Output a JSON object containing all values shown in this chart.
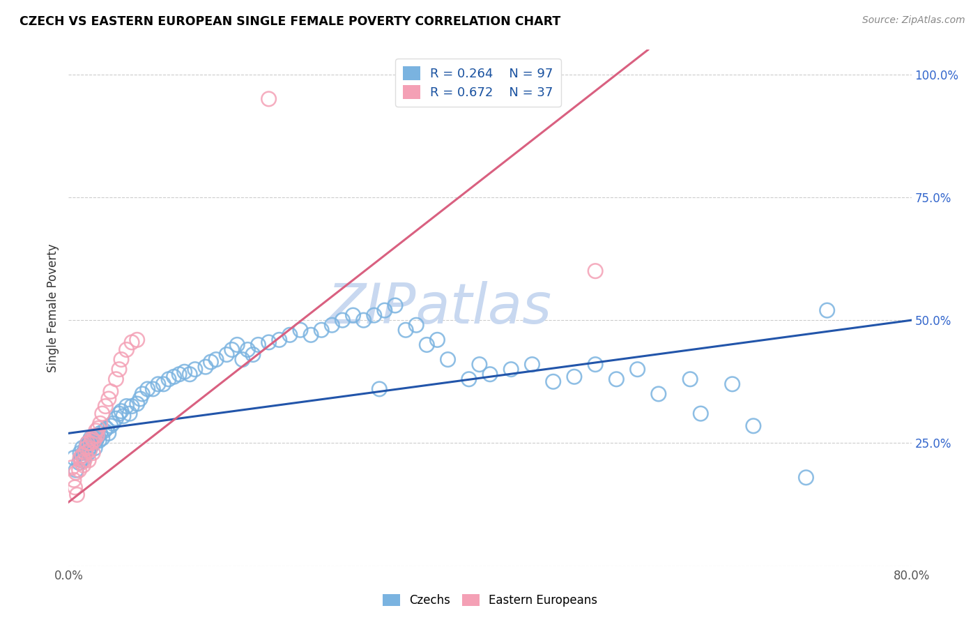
{
  "title": "CZECH VS EASTERN EUROPEAN SINGLE FEMALE POVERTY CORRELATION CHART",
  "source": "Source: ZipAtlas.com",
  "ylabel": "Single Female Poverty",
  "czech_R": "0.264",
  "czech_N": "97",
  "eastern_R": "0.672",
  "eastern_N": "37",
  "czech_color": "#7ab3e0",
  "eastern_color": "#f4a0b5",
  "czech_line_color": "#2255aa",
  "eastern_line_color": "#d96080",
  "watermark_text": "ZIPatlas",
  "watermark_color": "#c8d8f0",
  "xlim": [
    0.0,
    0.8
  ],
  "ylim": [
    0.0,
    1.05
  ],
  "czech_line": [
    0.0,
    0.27,
    0.8,
    0.5
  ],
  "eastern_line": [
    0.0,
    0.13,
    0.55,
    1.05
  ],
  "czech_x": [
    0.005,
    0.007,
    0.01,
    0.011,
    0.012,
    0.013,
    0.013,
    0.014,
    0.015,
    0.016,
    0.017,
    0.018,
    0.019,
    0.02,
    0.02,
    0.021,
    0.022,
    0.023,
    0.024,
    0.025,
    0.026,
    0.027,
    0.028,
    0.029,
    0.03,
    0.032,
    0.034,
    0.036,
    0.038,
    0.04,
    0.042,
    0.045,
    0.048,
    0.05,
    0.052,
    0.055,
    0.058,
    0.06,
    0.065,
    0.068,
    0.07,
    0.075,
    0.08,
    0.085,
    0.09,
    0.095,
    0.1,
    0.105,
    0.11,
    0.115,
    0.12,
    0.13,
    0.135,
    0.14,
    0.15,
    0.155,
    0.16,
    0.165,
    0.17,
    0.175,
    0.18,
    0.19,
    0.2,
    0.21,
    0.22,
    0.23,
    0.24,
    0.25,
    0.26,
    0.27,
    0.28,
    0.29,
    0.295,
    0.3,
    0.31,
    0.32,
    0.33,
    0.34,
    0.35,
    0.36,
    0.38,
    0.39,
    0.4,
    0.42,
    0.44,
    0.46,
    0.48,
    0.5,
    0.52,
    0.54,
    0.56,
    0.59,
    0.6,
    0.63,
    0.65,
    0.7,
    0.72
  ],
  "czech_y": [
    0.22,
    0.195,
    0.21,
    0.23,
    0.215,
    0.225,
    0.24,
    0.23,
    0.22,
    0.235,
    0.245,
    0.25,
    0.23,
    0.255,
    0.24,
    0.26,
    0.245,
    0.25,
    0.255,
    0.24,
    0.255,
    0.26,
    0.265,
    0.255,
    0.27,
    0.26,
    0.275,
    0.28,
    0.27,
    0.285,
    0.29,
    0.3,
    0.31,
    0.315,
    0.305,
    0.325,
    0.31,
    0.325,
    0.33,
    0.34,
    0.35,
    0.36,
    0.36,
    0.37,
    0.37,
    0.38,
    0.385,
    0.39,
    0.395,
    0.39,
    0.4,
    0.405,
    0.415,
    0.42,
    0.43,
    0.44,
    0.45,
    0.42,
    0.44,
    0.43,
    0.45,
    0.455,
    0.46,
    0.47,
    0.48,
    0.47,
    0.48,
    0.49,
    0.5,
    0.51,
    0.5,
    0.51,
    0.36,
    0.52,
    0.53,
    0.48,
    0.49,
    0.45,
    0.46,
    0.42,
    0.38,
    0.41,
    0.39,
    0.4,
    0.41,
    0.375,
    0.385,
    0.41,
    0.38,
    0.4,
    0.35,
    0.38,
    0.31,
    0.37,
    0.285,
    0.18,
    0.52
  ],
  "eastern_x": [
    0.003,
    0.005,
    0.006,
    0.007,
    0.008,
    0.01,
    0.011,
    0.012,
    0.013,
    0.014,
    0.015,
    0.016,
    0.017,
    0.018,
    0.019,
    0.02,
    0.021,
    0.022,
    0.023,
    0.024,
    0.025,
    0.026,
    0.027,
    0.028,
    0.03,
    0.032,
    0.035,
    0.038,
    0.04,
    0.045,
    0.048,
    0.05,
    0.055,
    0.06,
    0.065,
    0.19,
    0.5
  ],
  "eastern_y": [
    0.2,
    0.175,
    0.16,
    0.19,
    0.145,
    0.195,
    0.22,
    0.21,
    0.225,
    0.205,
    0.215,
    0.23,
    0.24,
    0.25,
    0.215,
    0.235,
    0.25,
    0.26,
    0.23,
    0.255,
    0.265,
    0.275,
    0.265,
    0.28,
    0.29,
    0.31,
    0.325,
    0.34,
    0.355,
    0.38,
    0.4,
    0.42,
    0.44,
    0.455,
    0.46,
    0.95,
    0.6
  ]
}
